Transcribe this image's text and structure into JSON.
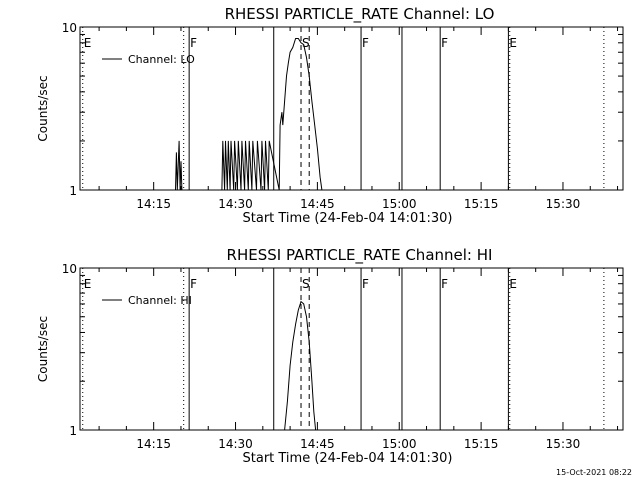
{
  "footer": {
    "timestamp": "15-Oct-2021 08:22"
  },
  "chart_data": [
    {
      "type": "line",
      "title": "RHESSI PARTICLE_RATE Channel: LO",
      "xlabel": "Start Time (24-Feb-04 14:01:30)",
      "ylabel": "Counts/sec",
      "y_scale": "log",
      "ylim": [
        1,
        10
      ],
      "y_ticks": [
        "1",
        "10"
      ],
      "xlim": [
        "14:01:30",
        "15:41:00"
      ],
      "x_ticks": [
        "14:15",
        "14:30",
        "14:45",
        "15:00",
        "15:15",
        "15:30"
      ],
      "legend": {
        "position": "top-left",
        "entries": [
          "Channel: LO"
        ]
      },
      "series": [
        {
          "name": "Channel: LO",
          "x": [
            "14:19:00",
            "14:19:10",
            "14:19:20",
            "14:19:40",
            "14:19:50",
            "14:20:00",
            "14:20:10",
            "14:27:30",
            "14:27:40",
            "14:28:00",
            "14:28:10",
            "14:28:30",
            "14:28:40",
            "14:29:00",
            "14:29:10",
            "14:29:40",
            "14:29:50",
            "14:30:20",
            "14:30:30",
            "14:31:00",
            "14:31:10",
            "14:31:40",
            "14:31:50",
            "14:32:20",
            "14:32:30",
            "14:33:00",
            "14:33:10",
            "14:33:50",
            "14:34:00",
            "14:34:40",
            "14:34:50",
            "14:35:20",
            "14:35:30",
            "14:36:00",
            "14:36:10",
            "14:38:00",
            "14:38:10",
            "14:38:30",
            "14:38:40",
            "14:39:00",
            "14:39:20",
            "14:39:40",
            "14:40:00",
            "14:40:30",
            "14:41:00",
            "14:41:30",
            "14:42:00",
            "14:42:30",
            "14:43:00",
            "14:43:30",
            "14:44:00",
            "14:44:30",
            "14:45:00",
            "14:45:30",
            "14:45:50"
          ],
          "y": [
            1,
            1.7,
            1,
            2,
            1,
            1.5,
            1,
            1,
            2,
            1,
            2,
            1,
            2,
            1,
            2,
            1,
            2,
            1,
            2,
            1,
            2,
            1,
            2,
            1,
            2,
            1,
            2,
            1,
            2,
            1,
            2,
            1,
            2,
            1,
            2,
            1,
            2.5,
            3,
            2.5,
            3.5,
            5,
            6,
            7,
            7.5,
            8.5,
            8.5,
            8,
            7.8,
            6.5,
            5,
            3.5,
            2.5,
            1.8,
            1.2,
            1
          ]
        }
      ],
      "event_markers": [
        {
          "time": "14:02:00",
          "label": "E",
          "style": "dotted"
        },
        {
          "time": "14:20:30",
          "label": "",
          "style": "dotted"
        },
        {
          "time": "14:21:30",
          "label": "F",
          "style": "solid"
        },
        {
          "time": "14:37:00",
          "label": "",
          "style": "solid"
        },
        {
          "time": "14:42:00",
          "label": "S",
          "style": "dashed"
        },
        {
          "time": "14:43:30",
          "label": "",
          "style": "dashed"
        },
        {
          "time": "14:53:00",
          "label": "F",
          "style": "solid"
        },
        {
          "time": "15:00:30",
          "label": "",
          "style": "solid"
        },
        {
          "time": "15:07:30",
          "label": "F",
          "style": "solid"
        },
        {
          "time": "15:20:00",
          "label": "E",
          "style": "solid"
        },
        {
          "time": "15:20:15",
          "label": "",
          "style": "dotted"
        },
        {
          "time": "15:37:30",
          "label": "",
          "style": "dotted"
        }
      ]
    },
    {
      "type": "line",
      "title": "RHESSI PARTICLE_RATE Channel: HI",
      "xlabel": "Start Time (24-Feb-04 14:01:30)",
      "ylabel": "Counts/sec",
      "y_scale": "log",
      "ylim": [
        1,
        10
      ],
      "y_ticks": [
        "1",
        "10"
      ],
      "xlim": [
        "14:01:30",
        "15:41:00"
      ],
      "x_ticks": [
        "14:15",
        "14:30",
        "14:45",
        "15:00",
        "15:15",
        "15:30"
      ],
      "legend": {
        "position": "top-left",
        "entries": [
          "Channel: HI"
        ]
      },
      "series": [
        {
          "name": "Channel: HI",
          "x": [
            "14:39:00",
            "14:39:30",
            "14:40:00",
            "14:40:30",
            "14:41:00",
            "14:41:30",
            "14:42:00",
            "14:42:30",
            "14:43:00",
            "14:43:30",
            "14:44:00",
            "14:44:20",
            "14:44:40"
          ],
          "y": [
            1,
            1.5,
            2.5,
            3.5,
            4.5,
            5.5,
            6.2,
            6,
            5,
            3.5,
            2,
            1.3,
            1
          ]
        }
      ],
      "event_markers": [
        {
          "time": "14:02:00",
          "label": "E",
          "style": "dotted"
        },
        {
          "time": "14:20:30",
          "label": "",
          "style": "dotted"
        },
        {
          "time": "14:21:30",
          "label": "F",
          "style": "solid"
        },
        {
          "time": "14:37:00",
          "label": "",
          "style": "solid"
        },
        {
          "time": "14:42:00",
          "label": "S",
          "style": "dashed"
        },
        {
          "time": "14:43:30",
          "label": "",
          "style": "dashed"
        },
        {
          "time": "14:53:00",
          "label": "F",
          "style": "solid"
        },
        {
          "time": "15:00:30",
          "label": "",
          "style": "solid"
        },
        {
          "time": "15:07:30",
          "label": "F",
          "style": "solid"
        },
        {
          "time": "15:20:00",
          "label": "E",
          "style": "solid"
        },
        {
          "time": "15:20:15",
          "label": "",
          "style": "dotted"
        },
        {
          "time": "15:37:30",
          "label": "",
          "style": "dotted"
        }
      ]
    }
  ]
}
